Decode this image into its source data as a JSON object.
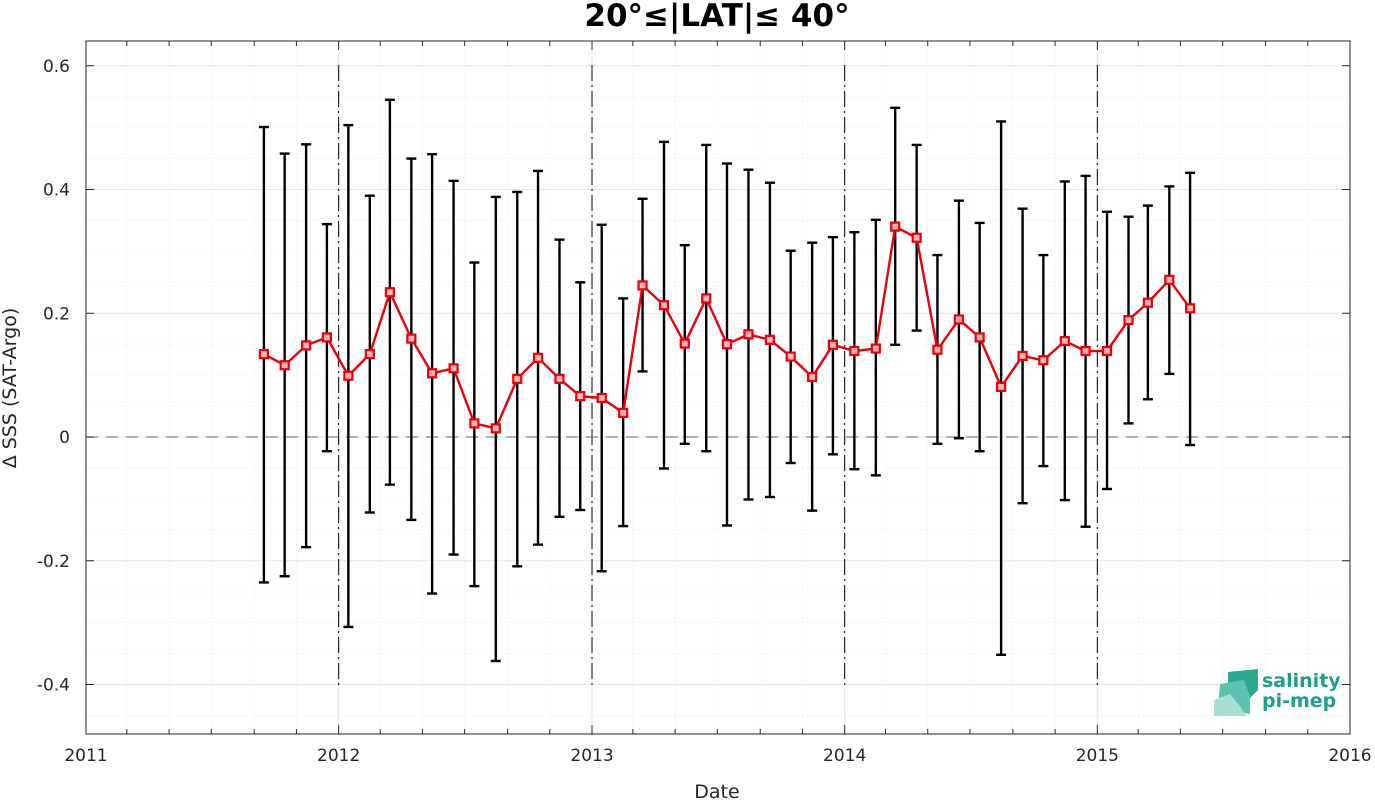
{
  "chart_data": {
    "type": "line",
    "title": "20°≤|LAT|≤ 40°",
    "xlabel": "Date",
    "ylabel": "Δ SSS (SAT-Argo)",
    "xlim": [
      "2011-01-01",
      "2016-01-01"
    ],
    "ylim": [
      -0.48,
      0.64
    ],
    "x_ticks": [
      "2011",
      "2012",
      "2013",
      "2014",
      "2015",
      "2016"
    ],
    "y_ticks": [
      "-0.4",
      "-0.2",
      "0",
      "0.2",
      "0.4",
      "0.6"
    ],
    "y_tick_values": [
      -0.4,
      -0.2,
      0,
      0.2,
      0.4,
      0.6
    ],
    "grid": true,
    "minor_grid": true,
    "reference_line": {
      "y": 0,
      "style": "dashed",
      "color": "#808080"
    },
    "year_separators": [
      "2012-01-01",
      "2013-01-01",
      "2014-01-01",
      "2015-01-01"
    ],
    "series": [
      {
        "color": "#e8000b",
        "marker": "square",
        "x": [
          "2011-09-15",
          "2011-10-15",
          "2011-11-15",
          "2011-12-15",
          "2012-01-15",
          "2012-02-15",
          "2012-03-15",
          "2012-04-15",
          "2012-05-15",
          "2012-06-15",
          "2012-07-15",
          "2012-08-15",
          "2012-09-15",
          "2012-10-15",
          "2012-11-15",
          "2012-12-15",
          "2013-01-15",
          "2013-02-15",
          "2013-03-15",
          "2013-04-15",
          "2013-05-15",
          "2013-06-15",
          "2013-07-15",
          "2013-08-15",
          "2013-09-15",
          "2013-10-15",
          "2013-11-15",
          "2013-12-15",
          "2014-01-15",
          "2014-02-15",
          "2014-03-15",
          "2014-04-15",
          "2014-05-15",
          "2014-06-15",
          "2014-07-15",
          "2014-08-15",
          "2014-09-15",
          "2014-10-15",
          "2014-11-15",
          "2014-12-15",
          "2015-01-15",
          "2015-02-15",
          "2015-03-15",
          "2015-04-15",
          "2015-05-15"
        ],
        "y": [
          0.134,
          0.116,
          0.148,
          0.161,
          0.099,
          0.134,
          0.234,
          0.159,
          0.103,
          0.111,
          0.022,
          0.014,
          0.094,
          0.128,
          0.094,
          0.066,
          0.063,
          0.039,
          0.245,
          0.213,
          0.151,
          0.224,
          0.15,
          0.166,
          0.157,
          0.13,
          0.097,
          0.149,
          0.139,
          0.143,
          0.34,
          0.322,
          0.141,
          0.19,
          0.161,
          0.081,
          0.131,
          0.124,
          0.155,
          0.139,
          0.139,
          0.189,
          0.217,
          0.254,
          0.208
        ],
        "err_low": [
          -0.235,
          -0.225,
          -0.178,
          -0.023,
          -0.307,
          -0.122,
          -0.077,
          -0.134,
          -0.253,
          -0.19,
          -0.241,
          -0.362,
          -0.209,
          -0.174,
          -0.129,
          -0.118,
          -0.217,
          -0.144,
          0.106,
          -0.051,
          -0.011,
          -0.023,
          -0.143,
          -0.101,
          -0.097,
          -0.042,
          -0.119,
          -0.028,
          -0.052,
          -0.062,
          0.149,
          0.172,
          -0.011,
          -0.002,
          -0.023,
          -0.352,
          -0.107,
          -0.047,
          -0.102,
          -0.145,
          -0.084,
          0.022,
          0.061,
          0.102,
          -0.013
        ],
        "err_high": [
          0.501,
          0.458,
          0.473,
          0.344,
          0.504,
          0.39,
          0.545,
          0.45,
          0.457,
          0.414,
          0.282,
          0.388,
          0.396,
          0.43,
          0.319,
          0.25,
          0.343,
          0.224,
          0.385,
          0.477,
          0.31,
          0.472,
          0.442,
          0.432,
          0.411,
          0.301,
          0.314,
          0.323,
          0.331,
          0.351,
          0.532,
          0.472,
          0.294,
          0.382,
          0.346,
          0.51,
          0.369,
          0.294,
          0.413,
          0.422,
          0.364,
          0.356,
          0.374,
          0.405,
          0.427
        ]
      }
    ]
  },
  "logo": {
    "line1": "salinity",
    "line2": "pi-mep"
  },
  "colors": {
    "series": "#e8000b",
    "errorbar": "#000000",
    "axis": "#262626",
    "grid": "#e0e0e0",
    "logo": "#1f9e8d"
  }
}
